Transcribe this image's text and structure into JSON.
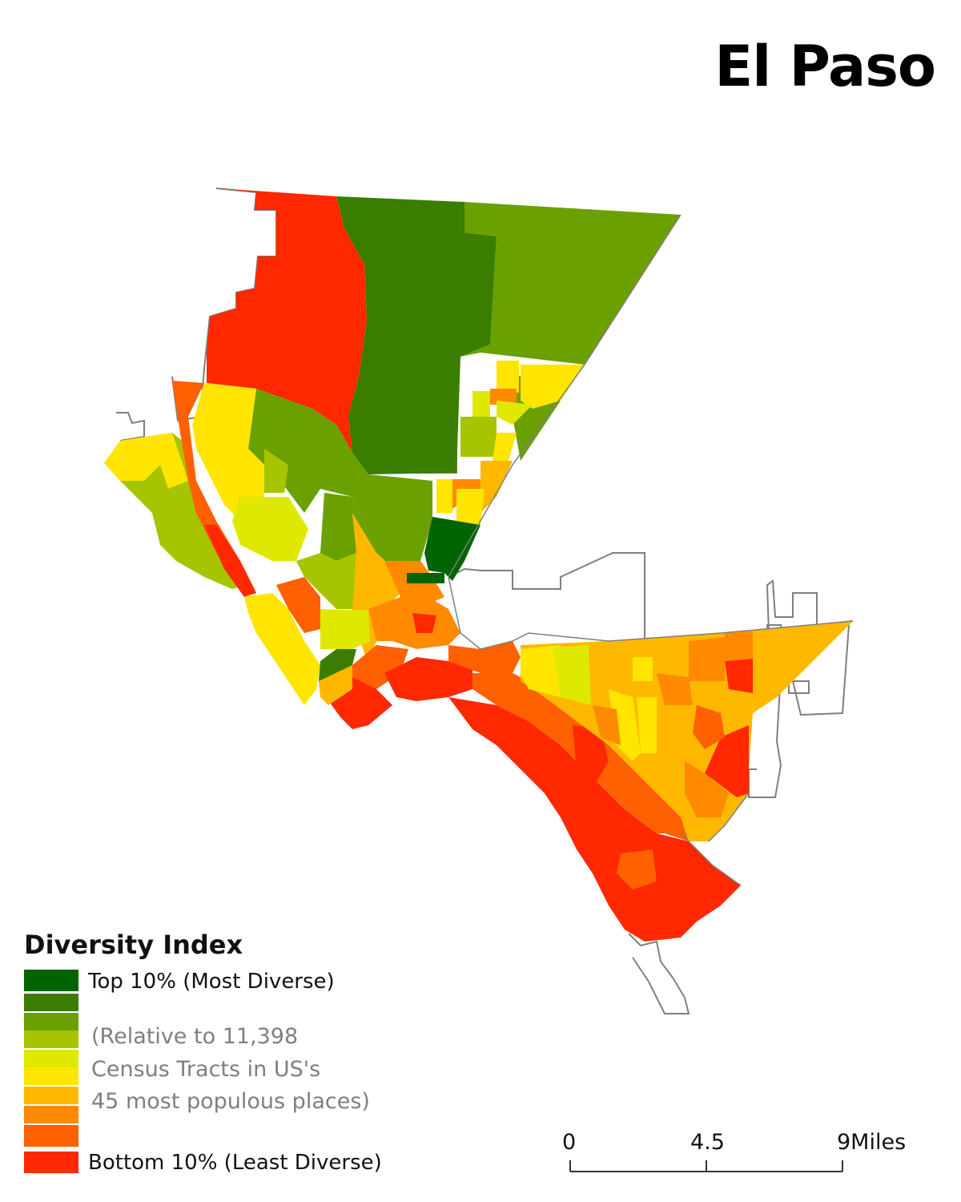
{
  "title": "El Paso",
  "legend": {
    "title": "Diversity Index",
    "top_label": "Top 10% (Most Diverse)",
    "bottom_label": "Bottom 10% (Least Diverse)",
    "note_lines": [
      "(Relative to 11,398",
      "Census Tracts in US's",
      "45 most populous places)"
    ],
    "classes": [
      {
        "rank": 1,
        "color": "#006400"
      },
      {
        "rank": 2,
        "color": "#3a7d00"
      },
      {
        "rank": 3,
        "color": "#6aa000"
      },
      {
        "rank": 4,
        "color": "#a6c400"
      },
      {
        "rank": 5,
        "color": "#dfe800"
      },
      {
        "rank": 6,
        "color": "#ffe500"
      },
      {
        "rank": 7,
        "color": "#ffb800"
      },
      {
        "rank": 8,
        "color": "#ff8a00"
      },
      {
        "rank": 9,
        "color": "#ff6000"
      },
      {
        "rank": 10,
        "color": "#ff2800"
      }
    ]
  },
  "scale_bar": {
    "labels": [
      "0",
      "4.5",
      "9Miles"
    ]
  },
  "colors": {
    "boundary": "#7f7f7f",
    "map_background": "#ffffff"
  }
}
